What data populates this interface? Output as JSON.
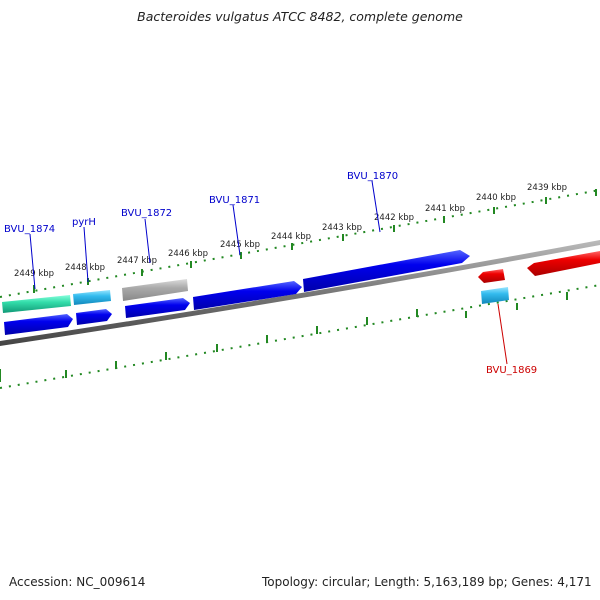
{
  "title": "Bacteroides vulgatus ATCC 8482, complete genome",
  "footer": {
    "accession": "Accession: NC_009614",
    "summary": "Topology: circular; Length: 5,163,189 bp; Genes: 4,171"
  },
  "ticks": [
    "2449 kbp",
    "2448 kbp",
    "2447 kbp",
    "2446 kbp",
    "2445 kbp",
    "2444 kbp",
    "2443 kbp",
    "2442 kbp",
    "2441 kbp",
    "2440 kbp",
    "2439 kbp"
  ],
  "genes": [
    {
      "label": "BVU_1874",
      "color": "#0000cc"
    },
    {
      "label": "pyrH",
      "color": "#0000cc"
    },
    {
      "label": "BVU_1872",
      "color": "#0000cc"
    },
    {
      "label": "BVU_1871",
      "color": "#0000cc"
    },
    {
      "label": "BVU_1870",
      "color": "#0000cc"
    },
    {
      "label": "BVU_1869",
      "color": "#cc0000"
    }
  ],
  "colors": {
    "cds_forward": "#0000ee",
    "cds_reverse": "#ee0000",
    "cog_teal": "#33ddaa",
    "cog_cyan": "#33bbee",
    "cog_gray": "#aaaaaa",
    "tick_green": "#228822",
    "backbone": "#777777"
  }
}
